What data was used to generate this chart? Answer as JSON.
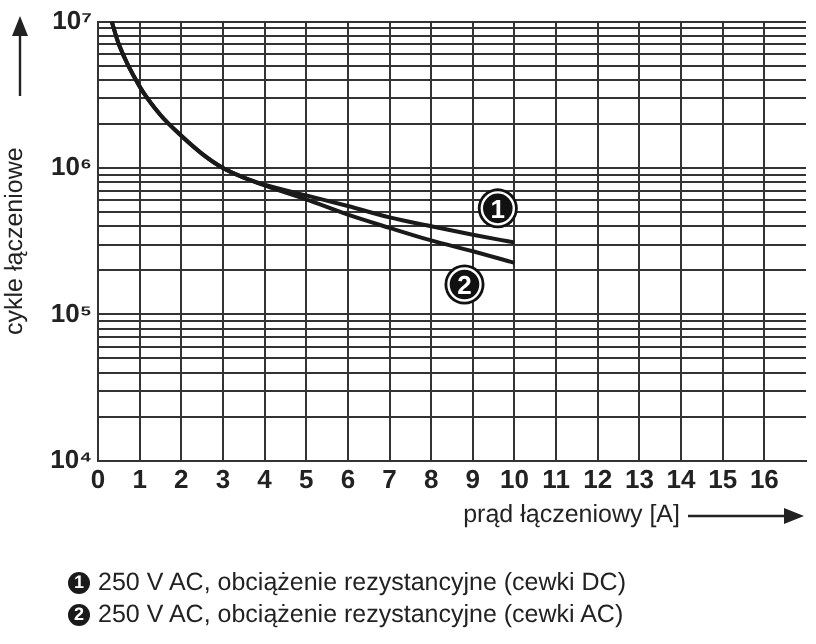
{
  "chart_data": {
    "type": "line",
    "xlabel": "prąd łączeniowy [A]",
    "ylabel": "cykle łączeniowe",
    "log": "y",
    "grid": true,
    "legend": "bottom",
    "marker": "none",
    "line_style": "solid",
    "xlim": [
      0,
      17
    ],
    "xticks": [
      0,
      1,
      2,
      3,
      4,
      5,
      6,
      7,
      8,
      9,
      10,
      11,
      12,
      13,
      14,
      15,
      16
    ],
    "ylim": [
      10000,
      10000000
    ],
    "yticks": [
      {
        "value": 10000,
        "label": "10⁴"
      },
      {
        "value": 20000,
        "label": null
      },
      {
        "value": 30000,
        "label": null
      },
      {
        "value": 40000,
        "label": null
      },
      {
        "value": 50000,
        "label": null
      },
      {
        "value": 60000,
        "label": null
      },
      {
        "value": 70000,
        "label": null
      },
      {
        "value": 80000,
        "label": null
      },
      {
        "value": 90000,
        "label": null
      },
      {
        "value": 100000,
        "label": "10⁵"
      },
      {
        "value": 200000,
        "label": null
      },
      {
        "value": 300000,
        "label": null
      },
      {
        "value": 400000,
        "label": null
      },
      {
        "value": 500000,
        "label": null
      },
      {
        "value": 600000,
        "label": null
      },
      {
        "value": 700000,
        "label": null
      },
      {
        "value": 800000,
        "label": null
      },
      {
        "value": 900000,
        "label": null
      },
      {
        "value": 1000000,
        "label": "10⁶"
      },
      {
        "value": 2000000,
        "label": null
      },
      {
        "value": 3000000,
        "label": null
      },
      {
        "value": 4000000,
        "label": null
      },
      {
        "value": 5000000,
        "label": null
      },
      {
        "value": 6000000,
        "label": null
      },
      {
        "value": 7000000,
        "label": null
      },
      {
        "value": 8000000,
        "label": null
      },
      {
        "value": 9000000,
        "label": null
      },
      {
        "value": 10000000,
        "label": "10⁷"
      }
    ],
    "x": [
      0.33,
      0.5,
      1,
      1.5,
      2,
      2.5,
      3,
      3.5,
      4,
      5,
      6,
      7,
      8,
      9,
      10
    ],
    "series": [
      {
        "name": "250 V AC, obciążenie rezystancyjne (cewki DC)",
        "color": "#1a1a1a",
        "values": [
          10000000,
          7000000,
          3600000,
          2300000,
          1660000,
          1250000,
          1000000,
          860000,
          770000,
          650000,
          550000,
          460000,
          400000,
          350000,
          310000
        ]
      },
      {
        "name": "250 V AC, obciążenie rezystancyjne (cewki AC)",
        "color": "#1a1a1a",
        "values": [
          10000000,
          7000000,
          3600000,
          2300000,
          1660000,
          1250000,
          1000000,
          860000,
          760000,
          610000,
          480000,
          390000,
          320000,
          270000,
          225000
        ]
      }
    ],
    "annotations": [
      {
        "text": "1",
        "x": 9.6,
        "y": 530000
      },
      {
        "text": "2",
        "x": 8.8,
        "y": 160000
      }
    ]
  }
}
